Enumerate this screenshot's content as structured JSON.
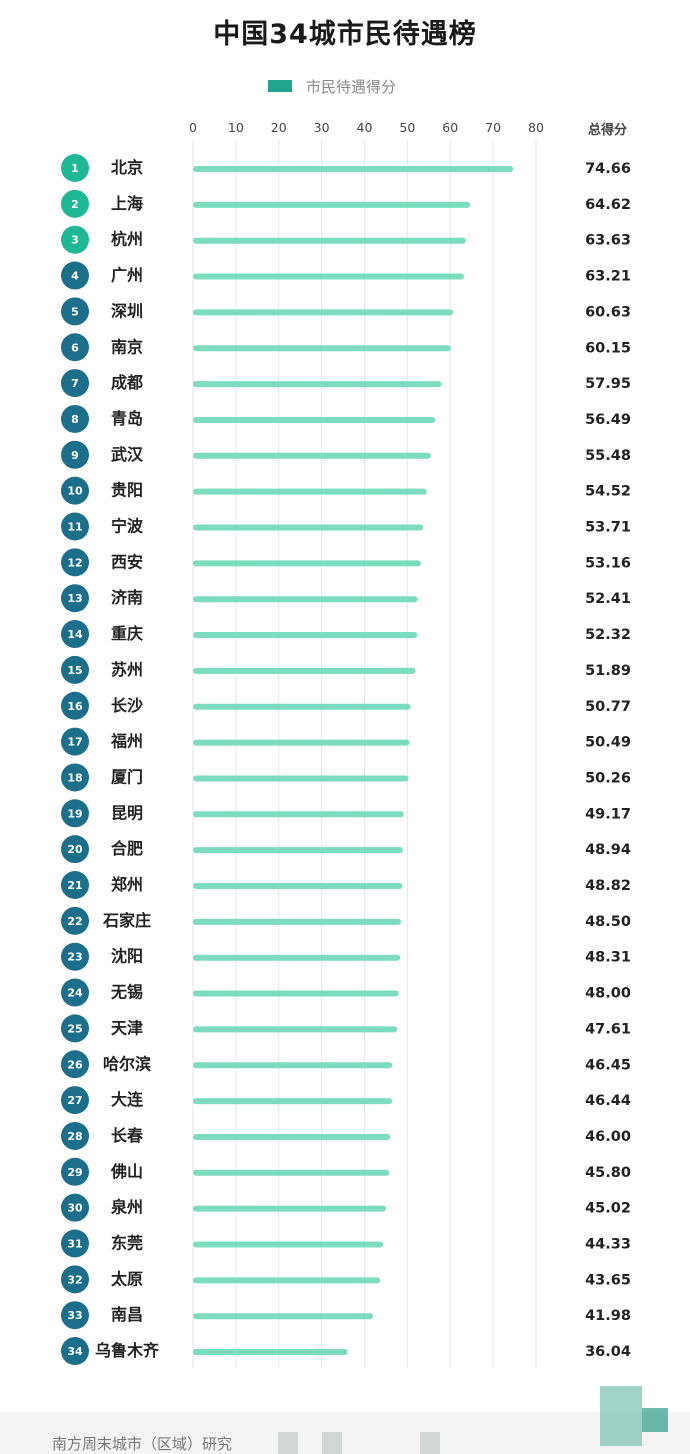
{
  "total_header": "总得分",
  "source": "南方周末城市（区域）研究",
  "colors": {
    "bar": "#7bdcbf",
    "legend": "#21a58f",
    "top_badge": "#1fb894",
    "badge": "#1c6f8a"
  },
  "chart_data": {
    "type": "bar",
    "orientation": "horizontal",
    "title": "中国34城市民待遇榜",
    "legend": [
      "市民待遇得分"
    ],
    "legend_position": "top",
    "xlim": [
      0,
      80
    ],
    "xticks": [
      0,
      10,
      20,
      30,
      40,
      50,
      60,
      70,
      80
    ],
    "grid": true,
    "ranks": [
      "1",
      "2",
      "3",
      "4",
      "5",
      "6",
      "7",
      "8",
      "9",
      "10",
      "11",
      "12",
      "13",
      "14",
      "15",
      "16",
      "17",
      "18",
      "19",
      "20",
      "21",
      "22",
      "23",
      "24",
      "25",
      "26",
      "27",
      "28",
      "29",
      "30",
      "31",
      "32",
      "33",
      "34"
    ],
    "categories": [
      "北京",
      "上海",
      "杭州",
      "广州",
      "深圳",
      "南京",
      "成都",
      "青岛",
      "武汉",
      "贵阳",
      "宁波",
      "西安",
      "济南",
      "重庆",
      "苏州",
      "长沙",
      "福州",
      "厦门",
      "昆明",
      "合肥",
      "郑州",
      "石家庄",
      "沈阳",
      "无锡",
      "天津",
      "哈尔滨",
      "大连",
      "长春",
      "佛山",
      "泉州",
      "东莞",
      "太原",
      "南昌",
      "乌鲁木齐"
    ],
    "values": [
      74.66,
      64.62,
      63.63,
      63.21,
      60.63,
      60.15,
      57.95,
      56.49,
      55.48,
      54.52,
      53.71,
      53.16,
      52.41,
      52.32,
      51.89,
      50.77,
      50.49,
      50.26,
      49.17,
      48.94,
      48.82,
      48.5,
      48.31,
      48.0,
      47.61,
      46.45,
      46.44,
      46.0,
      45.8,
      45.02,
      44.33,
      43.65,
      41.98,
      36.04
    ],
    "value_labels": [
      "74.66",
      "64.62",
      "63.63",
      "63.21",
      "60.63",
      "60.15",
      "57.95",
      "56.49",
      "55.48",
      "54.52",
      "53.71",
      "53.16",
      "52.41",
      "52.32",
      "51.89",
      "50.77",
      "50.49",
      "50.26",
      "49.17",
      "48.94",
      "48.82",
      "48.50",
      "48.31",
      "48.00",
      "47.61",
      "46.45",
      "46.44",
      "46.00",
      "45.80",
      "45.02",
      "44.33",
      "43.65",
      "41.98",
      "36.04"
    ]
  }
}
